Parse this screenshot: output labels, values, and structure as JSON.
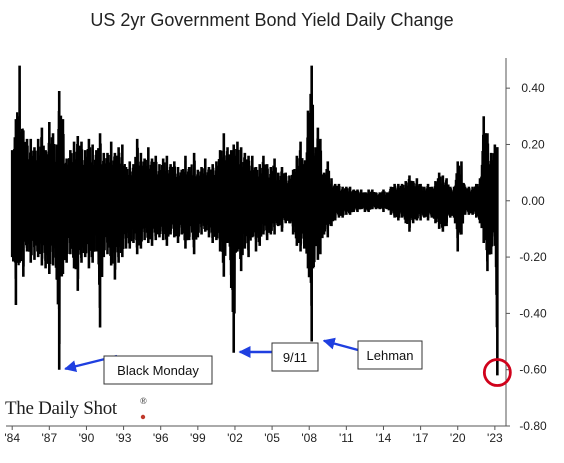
{
  "brand": {
    "name": "The Daily Shot",
    "mark": "®",
    "dot_color": "#c0392b"
  },
  "chart_data": {
    "type": "line",
    "title": "US 2yr Government Bond Yield Daily Change",
    "xlabel": "",
    "ylabel": "",
    "ylim": [
      -0.8,
      0.5
    ],
    "yticks": [
      {
        "value": 0.4,
        "label": "0.40"
      },
      {
        "value": 0.2,
        "label": "0.20"
      },
      {
        "value": 0.0,
        "label": "0.00"
      },
      {
        "value": -0.2,
        "label": "-0.20"
      },
      {
        "value": -0.4,
        "label": "-0.40"
      },
      {
        "value": -0.6,
        "label": "-0.60"
      },
      {
        "value": -0.8,
        "label": "-0.80"
      }
    ],
    "xlim": [
      1983.5,
      2023.9
    ],
    "xticks": [
      {
        "value": 1984,
        "label": "'84"
      },
      {
        "value": 1987,
        "label": "'87"
      },
      {
        "value": 1990,
        "label": "'90"
      },
      {
        "value": 1993,
        "label": "'93"
      },
      {
        "value": 1996,
        "label": "'96"
      },
      {
        "value": 1999,
        "label": "'99"
      },
      {
        "value": 2002,
        "label": "'02"
      },
      {
        "value": 2005,
        "label": "'05"
      },
      {
        "value": 2008,
        "label": "'08"
      },
      {
        "value": 2011,
        "label": "'11"
      },
      {
        "value": 2014,
        "label": "'14"
      },
      {
        "value": 2017,
        "label": "'17"
      },
      {
        "value": 2020,
        "label": "'20"
      },
      {
        "value": 2023,
        "label": "'23"
      }
    ],
    "line_color": "#000000",
    "series": [
      {
        "x": [
          1984.0,
          1984.3,
          1984.6,
          1984.9,
          1985.2,
          1985.5,
          1985.8,
          1986.1,
          1986.4,
          1986.7,
          1987.0,
          1987.3,
          1987.6,
          1987.8,
          1988.1,
          1988.4,
          1988.7,
          1989.0,
          1989.3,
          1989.6,
          1989.9,
          1990.2,
          1990.5,
          1990.8,
          1991.1,
          1991.4,
          1991.7,
          1992.0,
          1992.3,
          1992.6,
          1992.9,
          1993.2,
          1993.5,
          1993.8,
          1994.1,
          1994.4,
          1994.7,
          1995.0,
          1995.3,
          1995.6,
          1995.9,
          1996.2,
          1996.5,
          1996.8,
          1997.1,
          1997.4,
          1997.7,
          1998.0,
          1998.3,
          1998.7,
          1999.0,
          1999.3,
          1999.6,
          1999.9,
          2000.2,
          2000.5,
          2000.8,
          2001.1,
          2001.4,
          2001.7,
          2001.9,
          2002.2,
          2002.5,
          2002.8,
          2003.1,
          2003.4,
          2003.7,
          2004.0,
          2004.3,
          2004.6,
          2004.9,
          2005.2,
          2005.5,
          2005.8,
          2006.1,
          2006.4,
          2006.7,
          2007.0,
          2007.3,
          2007.6,
          2007.9,
          2008.2,
          2008.5,
          2008.7,
          2008.9,
          2009.2,
          2009.5,
          2009.8,
          2010.1,
          2010.4,
          2010.7,
          2011.0,
          2011.3,
          2011.6,
          2011.9,
          2012.2,
          2012.5,
          2012.8,
          2013.1,
          2013.4,
          2013.7,
          2014.0,
          2014.3,
          2014.6,
          2014.9,
          2015.2,
          2015.5,
          2015.8,
          2016.1,
          2016.4,
          2016.7,
          2017.0,
          2017.3,
          2017.6,
          2017.9,
          2018.2,
          2018.5,
          2018.8,
          2019.1,
          2019.4,
          2019.7,
          2020.0,
          2020.3,
          2020.6,
          2020.9,
          2021.2,
          2021.5,
          2021.8,
          2022.1,
          2022.4,
          2022.7,
          2023.0,
          2023.2
        ],
        "high": [
          0.18,
          0.29,
          0.48,
          0.25,
          0.22,
          0.22,
          0.19,
          0.22,
          0.26,
          0.18,
          0.28,
          0.24,
          0.2,
          0.39,
          0.29,
          0.15,
          0.18,
          0.21,
          0.23,
          0.21,
          0.18,
          0.22,
          0.2,
          0.18,
          0.24,
          0.17,
          0.17,
          0.21,
          0.17,
          0.19,
          0.2,
          0.12,
          0.14,
          0.13,
          0.22,
          0.17,
          0.15,
          0.19,
          0.15,
          0.16,
          0.13,
          0.15,
          0.16,
          0.13,
          0.14,
          0.12,
          0.11,
          0.16,
          0.12,
          0.17,
          0.11,
          0.12,
          0.15,
          0.12,
          0.13,
          0.14,
          0.18,
          0.24,
          0.19,
          0.18,
          0.2,
          0.21,
          0.19,
          0.17,
          0.16,
          0.16,
          0.12,
          0.13,
          0.16,
          0.13,
          0.12,
          0.15,
          0.1,
          0.12,
          0.1,
          0.09,
          0.11,
          0.16,
          0.21,
          0.13,
          0.32,
          0.48,
          0.19,
          0.26,
          0.22,
          0.1,
          0.14,
          0.08,
          0.06,
          0.06,
          0.05,
          0.05,
          0.05,
          0.04,
          0.04,
          0.04,
          0.03,
          0.04,
          0.04,
          0.03,
          0.03,
          0.04,
          0.03,
          0.05,
          0.06,
          0.06,
          0.06,
          0.07,
          0.09,
          0.07,
          0.08,
          0.06,
          0.05,
          0.06,
          0.05,
          0.07,
          0.1,
          0.09,
          0.08,
          0.05,
          0.05,
          0.14,
          0.14,
          0.05,
          0.05,
          0.05,
          0.06,
          0.08,
          0.3,
          0.24,
          0.17,
          0.2,
          0.19
        ],
        "low": [
          -0.2,
          -0.37,
          -0.22,
          -0.27,
          -0.18,
          -0.22,
          -0.21,
          -0.2,
          -0.23,
          -0.24,
          -0.26,
          -0.23,
          -0.28,
          -0.6,
          -0.26,
          -0.22,
          -0.19,
          -0.24,
          -0.32,
          -0.22,
          -0.2,
          -0.24,
          -0.22,
          -0.18,
          -0.45,
          -0.2,
          -0.19,
          -0.23,
          -0.28,
          -0.22,
          -0.2,
          -0.17,
          -0.17,
          -0.15,
          -0.19,
          -0.17,
          -0.14,
          -0.15,
          -0.16,
          -0.14,
          -0.13,
          -0.14,
          -0.16,
          -0.12,
          -0.13,
          -0.15,
          -0.12,
          -0.17,
          -0.14,
          -0.19,
          -0.13,
          -0.12,
          -0.11,
          -0.13,
          -0.15,
          -0.14,
          -0.18,
          -0.27,
          -0.15,
          -0.31,
          -0.54,
          -0.18,
          -0.25,
          -0.17,
          -0.2,
          -0.13,
          -0.18,
          -0.16,
          -0.12,
          -0.14,
          -0.12,
          -0.12,
          -0.09,
          -0.11,
          -0.08,
          -0.08,
          -0.12,
          -0.16,
          -0.18,
          -0.17,
          -0.24,
          -0.5,
          -0.16,
          -0.21,
          -0.19,
          -0.12,
          -0.13,
          -0.09,
          -0.07,
          -0.06,
          -0.06,
          -0.05,
          -0.05,
          -0.04,
          -0.04,
          -0.03,
          -0.04,
          -0.04,
          -0.03,
          -0.03,
          -0.03,
          -0.04,
          -0.03,
          -0.05,
          -0.06,
          -0.07,
          -0.06,
          -0.08,
          -0.11,
          -0.08,
          -0.07,
          -0.07,
          -0.06,
          -0.07,
          -0.06,
          -0.08,
          -0.1,
          -0.11,
          -0.09,
          -0.06,
          -0.06,
          -0.18,
          -0.12,
          -0.05,
          -0.05,
          -0.05,
          -0.06,
          -0.08,
          -0.15,
          -0.25,
          -0.19,
          -0.16,
          -0.62
        ]
      }
    ],
    "annotations": [
      {
        "label": "Black Monday",
        "x": 1987.8,
        "y": -0.59
      },
      {
        "label": "9/11",
        "x": 2001.9,
        "y": -0.53
      },
      {
        "label": "Lehman",
        "x": 2008.7,
        "y": -0.49
      }
    ],
    "highlight": {
      "x": 2023.2,
      "y": -0.61,
      "color": "#d0021b"
    },
    "arrow_color": "#1f3fe0",
    "grid": false
  }
}
